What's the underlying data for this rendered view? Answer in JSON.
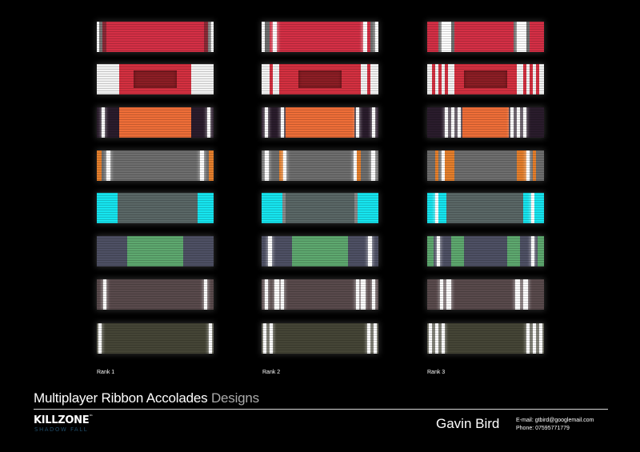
{
  "ranks": [
    "Rank 1",
    "Rank 2",
    "Rank 3"
  ],
  "ribbons": [
    [
      {
        "base": "#d42f45",
        "bands": [
          [
            0,
            3,
            "#ffffff"
          ],
          [
            3,
            7,
            "#777777"
          ],
          [
            7,
            12,
            "#8a2a36"
          ],
          [
            134,
            139,
            "#8a2a36"
          ],
          [
            139,
            143,
            "#777777"
          ],
          [
            143,
            146,
            "#ffffff"
          ]
        ]
      },
      {
        "base": "#f3f3f3",
        "bands": [
          [
            28,
            118,
            "#d43040"
          ]
        ],
        "inset": [
          46,
          100,
          "#8c1e25"
        ]
      },
      {
        "base": "#2a1c2c",
        "bands": [
          [
            6,
            10,
            "#ffffff"
          ],
          [
            28,
            118,
            "#ef6e38"
          ],
          [
            138,
            142,
            "#ffffff"
          ]
        ]
      },
      {
        "base": "#e57f2c",
        "bands": [
          [
            6,
            146,
            "#6e6e6e"
          ],
          [
            12,
            17,
            "#ffffff"
          ],
          [
            129,
            134,
            "#ffffff"
          ],
          [
            140,
            146,
            "#e57f2c"
          ]
        ]
      },
      {
        "base": "#16e5ef",
        "bands": [
          [
            26,
            126,
            "#5a6766"
          ]
        ]
      },
      {
        "base": "#4e5064",
        "bands": [
          [
            38,
            108,
            "#5ea86f"
          ]
        ]
      },
      {
        "base": "#594a4c",
        "bands": [
          [
            8,
            12,
            "#ffffff"
          ],
          [
            134,
            138,
            "#ffffff"
          ]
        ]
      },
      {
        "base": "#454536",
        "bands": [
          [
            2,
            6,
            "#ffffff"
          ],
          [
            140,
            144,
            "#ffffff"
          ]
        ]
      }
    ],
    [
      {
        "base": "#d42f45",
        "bands": [
          [
            0,
            4,
            "#ffffff"
          ],
          [
            4,
            10,
            "#6e6e6e"
          ],
          [
            10,
            14,
            "#d42f45"
          ],
          [
            14,
            19,
            "#ffffff"
          ],
          [
            127,
            132,
            "#ffffff"
          ],
          [
            132,
            136,
            "#d42f45"
          ],
          [
            136,
            142,
            "#6e6e6e"
          ],
          [
            142,
            146,
            "#ffffff"
          ]
        ]
      },
      {
        "base": "#f3f3f3",
        "bands": [
          [
            10,
            14,
            "#d43040"
          ],
          [
            22,
            124,
            "#d43040"
          ],
          [
            132,
            136,
            "#d43040"
          ]
        ],
        "inset": [
          46,
          100,
          "#8c1e25"
        ]
      },
      {
        "base": "#2a1c2c",
        "bands": [
          [
            4,
            8,
            "#ffffff"
          ],
          [
            24,
            28,
            "#ffffff"
          ],
          [
            30,
            116,
            "#ef6e38"
          ],
          [
            118,
            122,
            "#ffffff"
          ],
          [
            138,
            142,
            "#ffffff"
          ]
        ]
      },
      {
        "base": "#6e6e6e",
        "bands": [
          [
            4,
            9,
            "#ffffff"
          ],
          [
            22,
            27,
            "#e57f2c"
          ],
          [
            27,
            31,
            "#ffffff"
          ],
          [
            115,
            119,
            "#ffffff"
          ],
          [
            119,
            124,
            "#e57f2c"
          ],
          [
            137,
            142,
            "#ffffff"
          ]
        ]
      },
      {
        "base": "#16e5ef",
        "bands": [
          [
            26,
            30,
            "#8a8a8a"
          ],
          [
            30,
            116,
            "#5a6766"
          ],
          [
            116,
            120,
            "#8a8a8a"
          ]
        ]
      },
      {
        "base": "#4e5064",
        "bands": [
          [
            8,
            13,
            "#ffffff"
          ],
          [
            38,
            108,
            "#5ea86f"
          ],
          [
            133,
            138,
            "#ffffff"
          ]
        ]
      },
      {
        "base": "#594a4c",
        "bands": [
          [
            4,
            8,
            "#ffffff"
          ],
          [
            16,
            22,
            "#ffffff"
          ],
          [
            24,
            28,
            "#ffffff"
          ],
          [
            118,
            122,
            "#ffffff"
          ],
          [
            124,
            130,
            "#ffffff"
          ],
          [
            138,
            142,
            "#ffffff"
          ]
        ]
      },
      {
        "base": "#454536",
        "bands": [
          [
            2,
            6,
            "#ffffff"
          ],
          [
            10,
            14,
            "#ffffff"
          ],
          [
            132,
            136,
            "#ffffff"
          ],
          [
            140,
            144,
            "#ffffff"
          ]
        ]
      }
    ],
    [
      {
        "base": "#d42f45",
        "bands": [
          [
            0,
            4,
            "#d42f45"
          ],
          [
            14,
            18,
            "#6e6e6e"
          ],
          [
            18,
            30,
            "#ffffff"
          ],
          [
            30,
            34,
            "#6e6e6e"
          ],
          [
            108,
            112,
            "#6e6e6e"
          ],
          [
            112,
            124,
            "#ffffff"
          ],
          [
            124,
            128,
            "#6e6e6e"
          ],
          [
            142,
            146,
            "#d42f45"
          ]
        ]
      },
      {
        "base": "#f3f3f3",
        "bands": [
          [
            6,
            10,
            "#d43040"
          ],
          [
            14,
            18,
            "#d43040"
          ],
          [
            22,
            26,
            "#d43040"
          ],
          [
            34,
            112,
            "#d43040"
          ],
          [
            120,
            124,
            "#d43040"
          ],
          [
            128,
            132,
            "#d43040"
          ],
          [
            136,
            140,
            "#d43040"
          ]
        ],
        "inset": [
          46,
          100,
          "#8c1e25"
        ]
      },
      {
        "base": "#2a1c2c",
        "bands": [
          [
            22,
            26,
            "#ffffff"
          ],
          [
            30,
            34,
            "#ffffff"
          ],
          [
            38,
            42,
            "#ffffff"
          ],
          [
            44,
            102,
            "#ef6e38"
          ],
          [
            104,
            108,
            "#ffffff"
          ],
          [
            112,
            116,
            "#ffffff"
          ],
          [
            120,
            124,
            "#ffffff"
          ]
        ]
      },
      {
        "base": "#6e6e6e",
        "bands": [
          [
            10,
            14,
            "#e57f2c"
          ],
          [
            18,
            22,
            "#ffffff"
          ],
          [
            22,
            34,
            "#e57f2c"
          ],
          [
            112,
            124,
            "#e57f2c"
          ],
          [
            124,
            128,
            "#ffffff"
          ],
          [
            132,
            136,
            "#e57f2c"
          ]
        ]
      },
      {
        "base": "#5a6766",
        "bands": [
          [
            0,
            10,
            "#16e5ef"
          ],
          [
            10,
            14,
            "#ffffff"
          ],
          [
            14,
            24,
            "#16e5ef"
          ],
          [
            120,
            130,
            "#16e5ef"
          ],
          [
            130,
            134,
            "#ffffff"
          ],
          [
            134,
            146,
            "#16e5ef"
          ]
        ]
      },
      {
        "base": "#4e5064",
        "bands": [
          [
            0,
            8,
            "#5ea86f"
          ],
          [
            12,
            16,
            "#ffffff"
          ],
          [
            30,
            46,
            "#5ea86f"
          ],
          [
            100,
            116,
            "#5ea86f"
          ],
          [
            130,
            134,
            "#ffffff"
          ],
          [
            138,
            146,
            "#5ea86f"
          ]
        ]
      },
      {
        "base": "#594a4c",
        "bands": [
          [
            16,
            20,
            "#ffffff"
          ],
          [
            24,
            30,
            "#ffffff"
          ],
          [
            110,
            116,
            "#ffffff"
          ],
          [
            120,
            126,
            "#ffffff"
          ]
        ]
      },
      {
        "base": "#454536",
        "bands": [
          [
            2,
            6,
            "#ffffff"
          ],
          [
            10,
            14,
            "#ffffff"
          ],
          [
            18,
            22,
            "#ffffff"
          ],
          [
            124,
            128,
            "#ffffff"
          ],
          [
            132,
            136,
            "#ffffff"
          ],
          [
            140,
            144,
            "#ffffff"
          ]
        ]
      }
    ]
  ],
  "footer": {
    "title": "Multiplayer Ribbon Accolades",
    "title_sub": "Designs",
    "logo_main": "KILLZONE",
    "logo_tm": "™",
    "logo_sub": "SHADOW FALL",
    "author": "Gavin Bird",
    "email": "E-mail: gtbird@googlemail.com",
    "phone": "Phone: 07595771779"
  }
}
